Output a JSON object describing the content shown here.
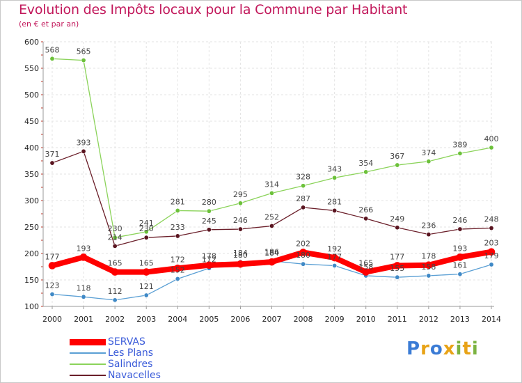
{
  "header": {
    "title": "Evolution des Impôts locaux pour la Commune par Habitant",
    "subtitle": "(en € et par an)"
  },
  "chart_data": {
    "type": "line",
    "title": "Evolution des Impôts locaux pour la Commune par Habitant",
    "subtitle": "(en € et par an)",
    "xlabel": "",
    "ylabel": "",
    "x": [
      "2000",
      "2001",
      "2002",
      "2003",
      "2004",
      "2005",
      "2006",
      "2007",
      "2008",
      "2009",
      "2010",
      "2011",
      "2012",
      "2013",
      "2014"
    ],
    "ylim": [
      100,
      600
    ],
    "yticks": [
      100,
      150,
      200,
      250,
      300,
      350,
      400,
      450,
      500,
      550,
      600
    ],
    "grid": true,
    "legend_position": "bottom-left",
    "series": [
      {
        "name": "Navacelles",
        "color": "#6b1f2a",
        "marker": "#5a1520",
        "width": 1.3,
        "values": [
          371,
          393,
          214,
          230,
          233,
          245,
          246,
          252,
          287,
          281,
          266,
          249,
          236,
          246,
          248
        ]
      },
      {
        "name": "Salindres",
        "color": "#8bd35a",
        "marker": "#6cc13a",
        "width": 1.3,
        "values": [
          568,
          565,
          230,
          241,
          281,
          280,
          295,
          314,
          328,
          343,
          354,
          367,
          374,
          389,
          400
        ]
      },
      {
        "name": "Les Plans",
        "color": "#5a9fd4",
        "marker": "#3f89c6",
        "width": 1.3,
        "values": [
          123,
          118,
          112,
          121,
          152,
          172,
          184,
          186,
          180,
          177,
          158,
          155,
          158,
          161,
          179
        ]
      },
      {
        "name": "SERVAS",
        "color": "#ff0000",
        "marker": "#ff0000",
        "width": 8,
        "values": [
          177,
          193,
          165,
          165,
          172,
          178,
          180,
          184,
          202,
          192,
          165,
          177,
          178,
          193,
          203
        ]
      }
    ],
    "legend": [
      "SERVAS",
      "Les Plans",
      "Salindres",
      "Navacelles"
    ]
  },
  "logo": {
    "letters": [
      "P",
      "r",
      "o",
      "x",
      "i",
      "t",
      "i"
    ],
    "colors": [
      "#3a7bd5",
      "#e8a317",
      "#3a7bd5",
      "#e8a317",
      "#7cb342",
      "#e8a317",
      "#7cb342"
    ]
  }
}
